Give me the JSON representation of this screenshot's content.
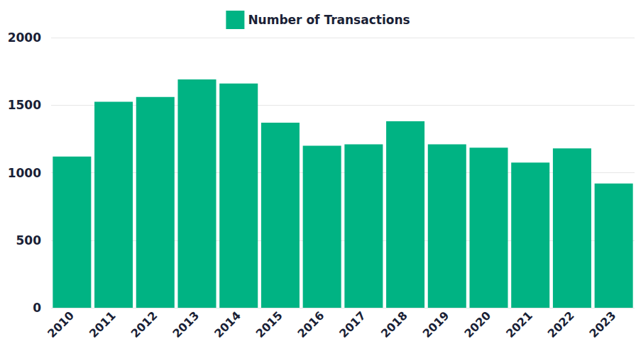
{
  "chart_data": {
    "type": "bar",
    "categories": [
      "2010",
      "2011",
      "2012",
      "2013",
      "2014",
      "2015",
      "2016",
      "2017",
      "2018",
      "2019",
      "2020",
      "2021",
      "2022",
      "2023"
    ],
    "series": [
      {
        "name": "Number of Transactions",
        "color": "#00b383",
        "values": [
          1120,
          1525,
          1560,
          1690,
          1660,
          1370,
          1200,
          1210,
          1380,
          1210,
          1185,
          1075,
          1180,
          920
        ]
      }
    ],
    "ylim": [
      0,
      2000
    ],
    "yticks": [
      0,
      500,
      1000,
      1500,
      2000
    ],
    "grid": true,
    "legend": "top"
  }
}
